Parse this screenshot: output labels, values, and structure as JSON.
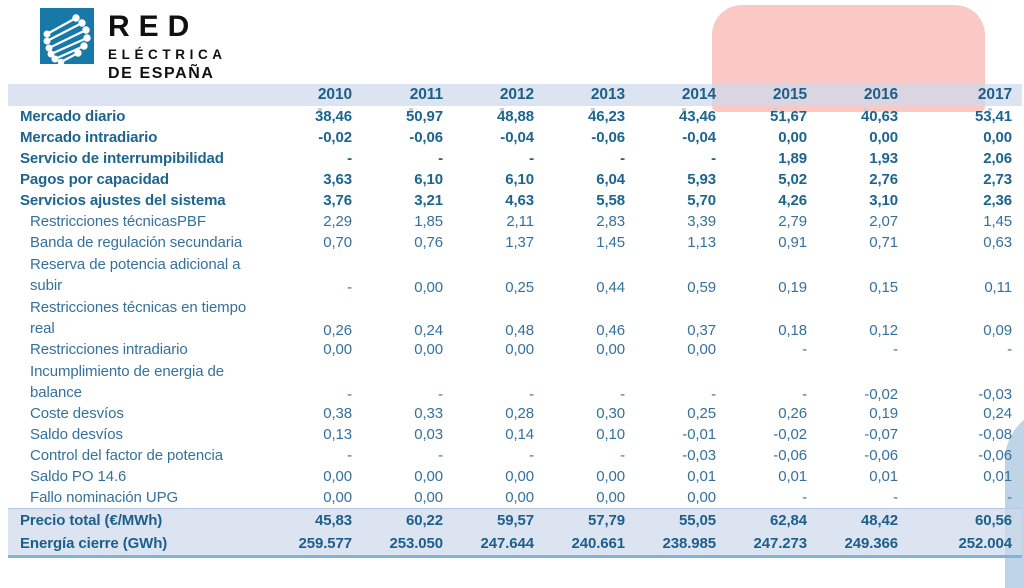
{
  "logo": {
    "line1": "RED",
    "line2": "ELÉCTRICA",
    "line3": "DE ESPAÑA"
  },
  "colors": {
    "accent_dark_blue": "#1d5f8a",
    "sub_row_blue": "#35719b",
    "band_light_blue": "#dce4f0",
    "highlight_pink": "#fbc9c5",
    "logo_blue": "#1878a8",
    "bottom_rule_blue": "#7fb3da"
  },
  "table": {
    "label_header": "",
    "years": [
      "2010",
      "2011",
      "2012",
      "2013",
      "2014",
      "2015",
      "2016",
      "2017"
    ],
    "rows": [
      {
        "label": "Mercado diario",
        "type": "section",
        "lines": 1,
        "values": [
          "38,46",
          "50,97",
          "48,88",
          "46,23",
          "43,46",
          "51,67",
          "40,63",
          "53,41"
        ]
      },
      {
        "label": "Mercado intradiario",
        "type": "section",
        "lines": 1,
        "values": [
          "-0,02",
          "-0,06",
          "-0,04",
          "-0,06",
          "-0,04",
          "0,00",
          "0,00",
          "0,00"
        ]
      },
      {
        "label": "Servicio de interrumpibilidad",
        "type": "section",
        "lines": 1,
        "values": [
          "-",
          "-",
          "-",
          "-",
          "-",
          "1,89",
          "1,93",
          "2,06"
        ]
      },
      {
        "label": "Pagos por capacidad",
        "type": "section",
        "lines": 1,
        "values": [
          "3,63",
          "6,10",
          "6,10",
          "6,04",
          "5,93",
          "5,02",
          "2,76",
          "2,73"
        ]
      },
      {
        "label": "Servicios ajustes del sistema",
        "type": "section",
        "lines": 1,
        "values": [
          "3,76",
          "3,21",
          "4,63",
          "5,58",
          "5,70",
          "4,26",
          "3,10",
          "2,36"
        ]
      },
      {
        "label": "Restricciones técnicasPBF",
        "type": "sub",
        "lines": 1,
        "values": [
          "2,29",
          "1,85",
          "2,11",
          "2,83",
          "3,39",
          "2,79",
          "2,07",
          "1,45"
        ]
      },
      {
        "label": "Banda de regulación secundaria",
        "type": "sub",
        "lines": 1,
        "values": [
          "0,70",
          "0,76",
          "1,37",
          "1,45",
          "1,13",
          "0,91",
          "0,71",
          "0,63"
        ]
      },
      {
        "label": "Reserva de potencia adicional a subir",
        "type": "sub",
        "lines": 2,
        "values": [
          "-",
          "0,00",
          "0,25",
          "0,44",
          "0,59",
          "0,19",
          "0,15",
          "0,11"
        ]
      },
      {
        "label": "Restricciones técnicas en tiempo real",
        "type": "sub",
        "lines": 2,
        "values": [
          "0,26",
          "0,24",
          "0,48",
          "0,46",
          "0,37",
          "0,18",
          "0,12",
          "0,09"
        ]
      },
      {
        "label": "Restricciones intradiario",
        "type": "sub",
        "lines": 1,
        "values": [
          "0,00",
          "0,00",
          "0,00",
          "0,00",
          "0,00",
          "-",
          "-",
          "-"
        ]
      },
      {
        "label": "Incumplimiento de energia de balance",
        "type": "sub",
        "lines": 2,
        "values": [
          "-",
          "-",
          "-",
          "-",
          "-",
          "-",
          "-0,02",
          "-0,03"
        ]
      },
      {
        "label": "Coste desvíos",
        "type": "sub",
        "lines": 1,
        "values": [
          "0,38",
          "0,33",
          "0,28",
          "0,30",
          "0,25",
          "0,26",
          "0,19",
          "0,24"
        ]
      },
      {
        "label": "Saldo desvíos",
        "type": "sub",
        "lines": 1,
        "values": [
          "0,13",
          "0,03",
          "0,14",
          "0,10",
          "-0,01",
          "-0,02",
          "-0,07",
          "-0,08"
        ]
      },
      {
        "label": "Control del factor de potencia",
        "type": "sub",
        "lines": 1,
        "values": [
          "-",
          "-",
          "-",
          "-",
          "-0,03",
          "-0,06",
          "-0,06",
          "-0,06"
        ]
      },
      {
        "label": "Saldo PO 14.6",
        "type": "sub",
        "lines": 1,
        "values": [
          "0,00",
          "0,00",
          "0,00",
          "0,00",
          "0,01",
          "0,01",
          "0,01",
          "0,01"
        ]
      },
      {
        "label": "Fallo nominación UPG",
        "type": "sub",
        "lines": 1,
        "values": [
          "0,00",
          "0,00",
          "0,00",
          "0,00",
          "0,00",
          "-",
          "-",
          "-"
        ]
      },
      {
        "label": "Precio total (€/MWh)",
        "type": "total",
        "lines": 1,
        "values": [
          "45,83",
          "60,22",
          "59,57",
          "57,79",
          "55,05",
          "62,84",
          "48,42",
          "60,56"
        ]
      },
      {
        "label": "Energía cierre (GWh)",
        "type": "total",
        "lines": 1,
        "values": [
          "259.577",
          "253.050",
          "247.644",
          "240.661",
          "238.985",
          "247.273",
          "249.366",
          "252.004"
        ]
      }
    ]
  }
}
